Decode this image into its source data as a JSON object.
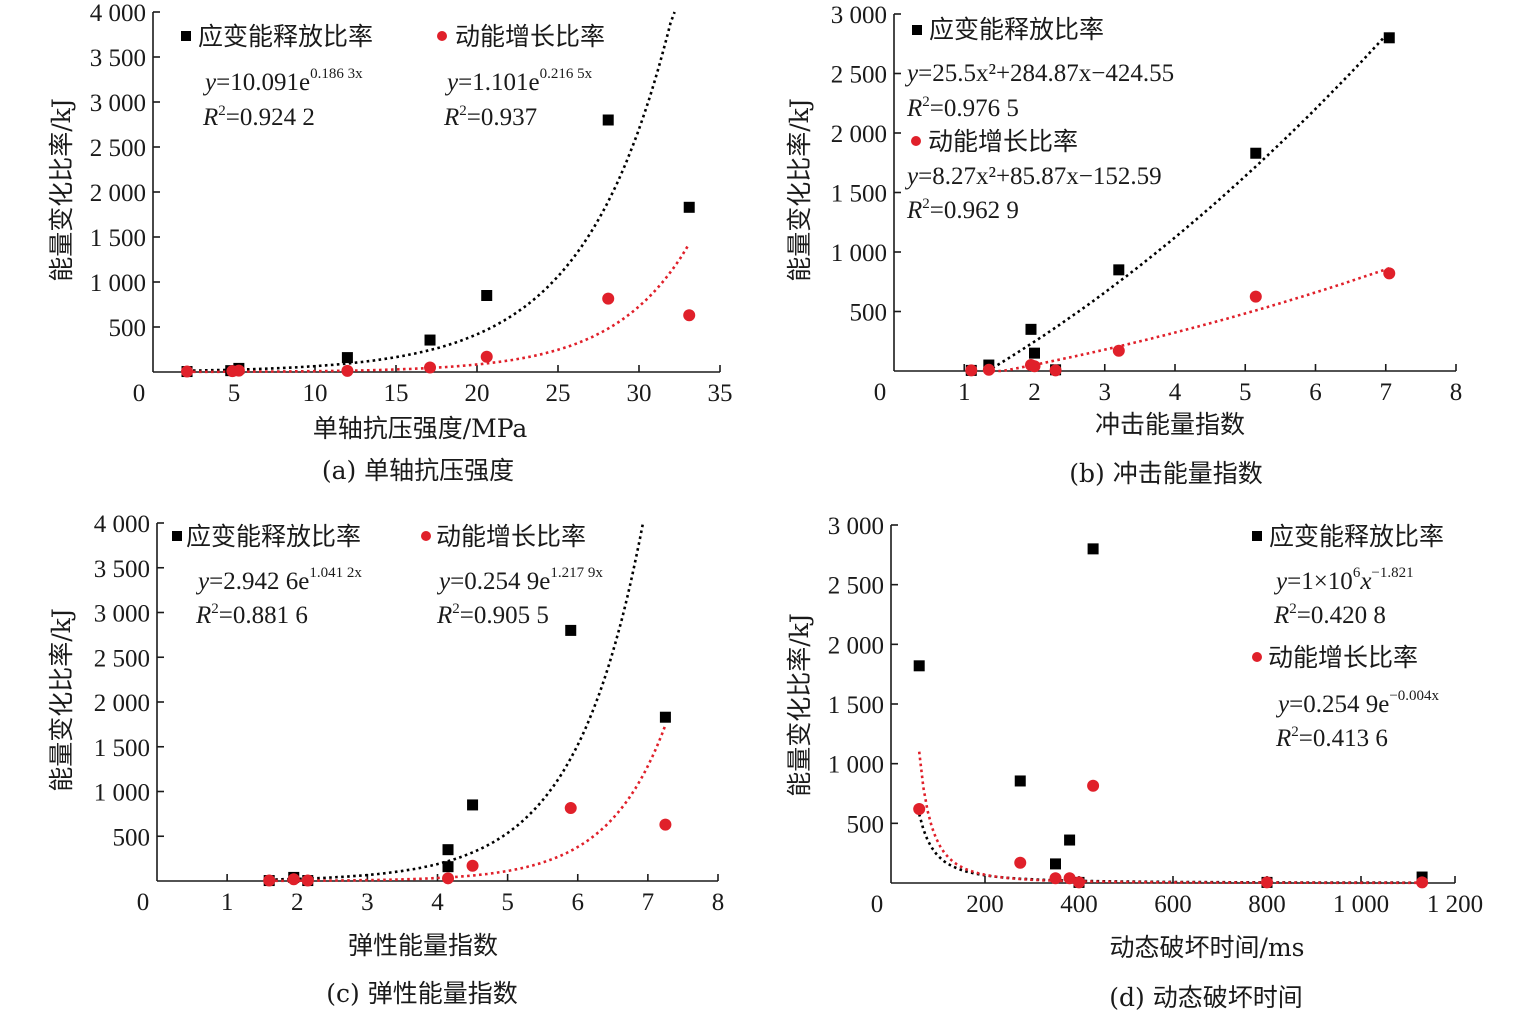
{
  "colors": {
    "strain": "#000000",
    "kinetic": "#e0202a",
    "axis": "#1a1a1a"
  },
  "legend_labels": {
    "strain": "应变能释放比率",
    "kinetic": "动能增长比率"
  },
  "chart_data": [
    {
      "id": "a",
      "type": "scatter",
      "caption": "(a)  单轴抗压强度",
      "xlabel": "单轴抗压强度/MPa",
      "ylabel": "能量变化比率/kJ",
      "xlim": [
        0,
        35
      ],
      "ylim": [
        0,
        4000
      ],
      "xticks": [
        0,
        5,
        10,
        15,
        20,
        25,
        30,
        35
      ],
      "xtick_labels": [
        "0",
        "5",
        "10",
        "15",
        "20",
        "25",
        "30",
        "35"
      ],
      "yticks": [
        500,
        1000,
        1500,
        2000,
        2500,
        3000,
        3500,
        4000
      ],
      "ytick_labels": [
        "500",
        "1 000",
        "1 500",
        "2 000",
        "2 500",
        "3 000",
        "3 500",
        "4 000"
      ],
      "grid": false,
      "legend_placement": "top",
      "series": [
        {
          "name": "应变能释放比率",
          "marker": "square",
          "x": [
            2.1,
            4.8,
            5.3,
            12.0,
            17.1,
            20.6,
            28.1,
            33.1
          ],
          "y": [
            5,
            15,
            40,
            160,
            355,
            850,
            2800,
            1830
          ],
          "fit": {
            "kind": "exp",
            "a": 10.091,
            "b": 0.1863,
            "x_range": [
              2.1,
              32.2
            ]
          },
          "equation": {
            "y_prefix": "y",
            "rhs": "=10.091e",
            "exp": "0.186 3x",
            "r2_label": "R",
            "r2_value": "=0.924 2"
          }
        },
        {
          "name": "动能增长比率",
          "marker": "circle",
          "x": [
            2.1,
            4.9,
            5.3,
            12.0,
            17.1,
            20.6,
            28.1,
            33.1
          ],
          "y": [
            5,
            10,
            15,
            12,
            50,
            170,
            815,
            630
          ],
          "fit": {
            "kind": "exp",
            "a": 1.101,
            "b": 0.2165,
            "x_range": [
              2.1,
              33.1
            ]
          },
          "equation": {
            "y_prefix": "y",
            "rhs": "=1.101e",
            "exp": "0.216 5x",
            "r2_label": "R",
            "r2_value": "=0.937"
          }
        }
      ]
    },
    {
      "id": "b",
      "type": "scatter",
      "caption": "(b)  冲击能量指数",
      "xlabel": "冲击能量指数",
      "ylabel": "能量变化比率/kJ",
      "xlim": [
        0,
        8
      ],
      "ylim": [
        0,
        3000
      ],
      "xticks": [
        0,
        1,
        2,
        3,
        4,
        5,
        6,
        7,
        8
      ],
      "xtick_labels": [
        "0",
        "1",
        "2",
        "3",
        "4",
        "5",
        "6",
        "7",
        "8"
      ],
      "yticks": [
        500,
        1000,
        1500,
        2000,
        2500,
        3000
      ],
      "ytick_labels": [
        "500",
        "1 000",
        "1 500",
        "2 000",
        "2 500",
        "3 000"
      ],
      "grid": false,
      "legend_placement": "top-left",
      "series": [
        {
          "name": "应变能释放比率",
          "marker": "square",
          "x": [
            1.1,
            1.35,
            1.95,
            2.0,
            2.3,
            3.2,
            5.15,
            7.05
          ],
          "y": [
            5,
            50,
            350,
            150,
            10,
            850,
            1830,
            2800
          ],
          "fit": {
            "kind": "poly2",
            "c2": 25.5,
            "c1": 284.87,
            "c0": -424.55,
            "x_range": [
              1.4,
              7.05
            ]
          },
          "equation": {
            "y_prefix": "y",
            "rhs": "=25.5x²+284.87x−424.55",
            "exp": "",
            "r2_label": "R",
            "r2_value": "=0.976 5"
          }
        },
        {
          "name": "动能增长比率",
          "marker": "circle",
          "x": [
            1.1,
            1.35,
            1.95,
            2.0,
            2.3,
            3.2,
            5.15,
            7.05
          ],
          "y": [
            5,
            10,
            50,
            40,
            5,
            170,
            625,
            820
          ],
          "fit": {
            "kind": "poly2",
            "c2": 8.27,
            "c1": 85.87,
            "c0": -152.59,
            "x_range": [
              1.4,
              7.05
            ]
          },
          "equation": {
            "y_prefix": "y",
            "rhs": "=8.27x²+85.87x−152.59",
            "exp": "",
            "r2_label": "R",
            "r2_value": "=0.962 9"
          }
        }
      ]
    },
    {
      "id": "c",
      "type": "scatter",
      "caption": "(c)  弹性能量指数",
      "xlabel": "弹性能量指数",
      "ylabel": "能量变化比率/kJ",
      "xlim": [
        0,
        8
      ],
      "ylim": [
        0,
        4000
      ],
      "xticks": [
        0,
        1,
        2,
        3,
        4,
        5,
        6,
        7,
        8
      ],
      "xtick_labels": [
        "0",
        "1",
        "2",
        "3",
        "4",
        "5",
        "6",
        "7",
        "8"
      ],
      "yticks": [
        500,
        1000,
        1500,
        2000,
        2500,
        3000,
        3500,
        4000
      ],
      "ytick_labels": [
        "500",
        "1 000",
        "1 500",
        "2 000",
        "2 500",
        "3 000",
        "3 500",
        "4 000"
      ],
      "grid": false,
      "legend_placement": "top",
      "series": [
        {
          "name": "应变能释放比率",
          "marker": "square",
          "x": [
            1.6,
            1.95,
            2.15,
            4.15,
            4.15,
            4.5,
            5.9,
            7.25
          ],
          "y": [
            5,
            40,
            5,
            350,
            160,
            850,
            2800,
            1830
          ],
          "fit": {
            "kind": "exp",
            "a": 2.9426,
            "b": 1.0412,
            "x_range": [
              1.6,
              6.93
            ]
          },
          "equation": {
            "y_prefix": "y",
            "rhs": "=2.942 6e",
            "exp": "1.041 2x",
            "r2_label": "R",
            "r2_value": "=0.881 6"
          }
        },
        {
          "name": "动能增长比率",
          "marker": "circle",
          "x": [
            1.6,
            1.95,
            2.15,
            4.15,
            4.5,
            5.9,
            7.25
          ],
          "y": [
            5,
            20,
            5,
            30,
            170,
            815,
            630
          ],
          "fit": {
            "kind": "exp",
            "a": 0.2549,
            "b": 1.2179,
            "x_range": [
              1.6,
              7.25
            ]
          },
          "equation": {
            "y_prefix": "y",
            "rhs": "=0.254 9e",
            "exp": "1.217 9x",
            "r2_label": "R",
            "r2_value": "=0.905 5"
          }
        }
      ]
    },
    {
      "id": "d",
      "type": "scatter",
      "caption": "(d)  动态破坏时间",
      "xlabel": "动态破坏时间/ms",
      "ylabel": "能量变化比率/kJ",
      "xlim": [
        0,
        1200
      ],
      "ylim": [
        0,
        3000
      ],
      "xticks": [
        0,
        200,
        400,
        600,
        800,
        1000,
        1200
      ],
      "xtick_labels": [
        "0",
        "200",
        "400",
        "600",
        "800",
        "1 000",
        "1 200"
      ],
      "yticks": [
        500,
        1000,
        1500,
        2000,
        2500,
        3000
      ],
      "ytick_labels": [
        "500",
        "1 000",
        "1 500",
        "2 000",
        "2 500",
        "3 000"
      ],
      "grid": false,
      "legend_placement": "top-right",
      "series": [
        {
          "name": "应变能释放比率",
          "marker": "square",
          "x": [
            60,
            275,
            350,
            380,
            400,
            430,
            800,
            1130
          ],
          "y": [
            1820,
            855,
            160,
            360,
            5,
            2800,
            5,
            50
          ],
          "fit": {
            "kind": "power",
            "a": 1000000,
            "b": -1.821,
            "x_range": [
              60,
              1130
            ]
          },
          "equation": {
            "y_prefix": "y",
            "rhs": "=1×10",
            "exp": "6",
            "rhs2": "x",
            "exp2": "−1.821",
            "r2_label": "R",
            "r2_value": "=0.420 8"
          }
        },
        {
          "name": "动能增长比率",
          "marker": "circle",
          "x": [
            60,
            275,
            350,
            380,
            400,
            430,
            800,
            1130
          ],
          "y": [
            620,
            170,
            40,
            40,
            5,
            815,
            5,
            5
          ],
          "fit": {
            "kind": "display_decay",
            "x_range": [
              60,
              1130
            ]
          },
          "equation": {
            "y_prefix": "y",
            "rhs": "=0.254 9e",
            "exp": "−0.004x",
            "r2_label": "R",
            "r2_value": "=0.413 6"
          }
        }
      ]
    }
  ]
}
